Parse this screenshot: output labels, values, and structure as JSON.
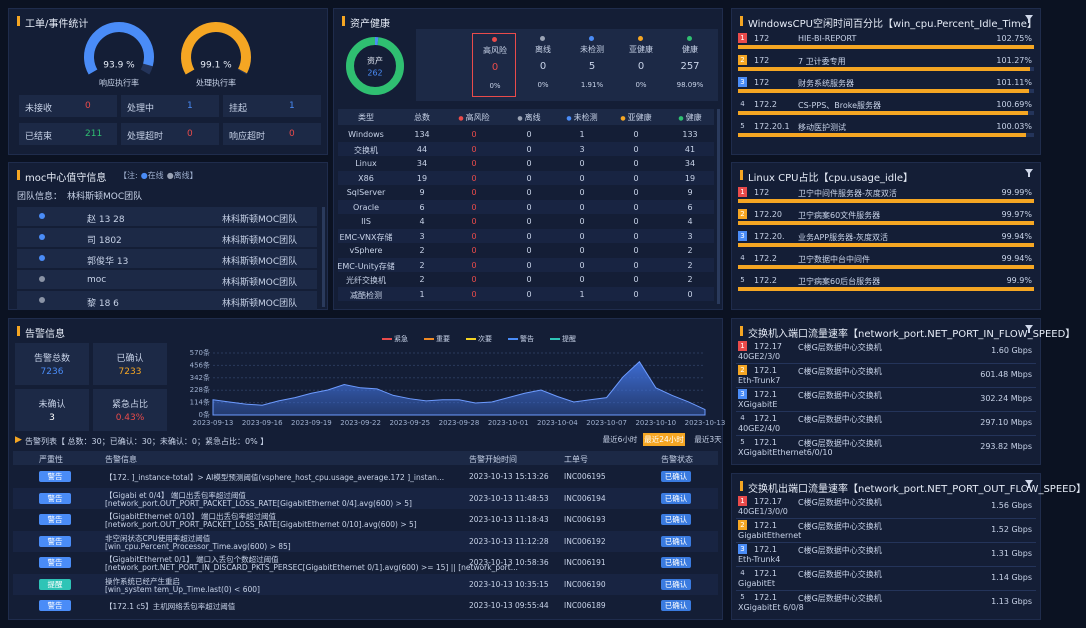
{
  "work_orders": {
    "title": "工单/事件统计",
    "lim": [
      0,
      100
    ],
    "gauges": [
      {
        "value": 93.9,
        "value_label": "93.9 %",
        "label": "响应执行率",
        "color": "#4a8cf7"
      },
      {
        "value": 99.1,
        "value_label": "99.1 %",
        "label": "处理执行率",
        "color": "#f5a623"
      }
    ],
    "stats": [
      {
        "label": "未接收",
        "value": 0,
        "color": "#e94b4b"
      },
      {
        "label": "处理中",
        "value": 1,
        "color": "#4a8cf7"
      },
      {
        "label": "挂起",
        "value": 1,
        "color": "#4a8cf7"
      },
      {
        "label": "已结束",
        "value": 211,
        "color": "#2fbf71"
      },
      {
        "label": "处理超时",
        "value": 0,
        "color": "#e94b4b"
      },
      {
        "label": "响应超时",
        "value": 0,
        "color": "#e94b4b"
      }
    ]
  },
  "moc": {
    "title": "moc中心值守信息",
    "note_prefix": "【注:",
    "online": "在线",
    "offline": "离线",
    "note_suffix": "】",
    "team_label": "团队信息：",
    "team": "林科斯顿MOC团队",
    "rows": [
      {
        "name": "赵 13 28",
        "team": "林科斯顿MOC团队",
        "online": true
      },
      {
        "name": "司 1802",
        "team": "林科斯顿MOC团队",
        "online": true
      },
      {
        "name": "郭俊华 13",
        "team": "林科斯顿MOC团队",
        "online": true
      },
      {
        "name": "moc",
        "team": "林科斯顿MOC团队",
        "online": false
      },
      {
        "name": "黎 18 6",
        "team": "林科斯顿MOC团队",
        "online": false
      }
    ]
  },
  "assets": {
    "title": "资产健康",
    "donut_label": "资产",
    "total_label": "总数",
    "total": 262,
    "cards": [
      {
        "label": "高风险",
        "value": 0,
        "share": 0,
        "share_label": "0%",
        "color": "#e94b4b"
      },
      {
        "label": "离线",
        "value": 0,
        "share": 0,
        "share_label": "0%",
        "color": "#9aa3b5"
      },
      {
        "label": "未检测",
        "value": 5,
        "share": 1.91,
        "share_label": "1.91%",
        "color": "#4a8cf7"
      },
      {
        "label": "亚健康",
        "value": 0,
        "share": 0,
        "share_label": "0%",
        "color": "#f5a623"
      },
      {
        "label": "健康",
        "value": 257,
        "share": 98.09,
        "share_label": "98.09%",
        "color": "#2fbf71"
      }
    ],
    "table": {
      "columns": [
        "类型",
        "总数",
        "高风险",
        "离线",
        "未检测",
        "亚健康",
        "健康"
      ],
      "rows": [
        [
          "Windows",
          134,
          0,
          0,
          1,
          0,
          133
        ],
        [
          "交换机",
          44,
          0,
          0,
          3,
          0,
          41
        ],
        [
          "Linux",
          34,
          0,
          0,
          0,
          0,
          34
        ],
        [
          "X86",
          19,
          0,
          0,
          0,
          0,
          19
        ],
        [
          "SqlServer",
          9,
          0,
          0,
          0,
          0,
          9
        ],
        [
          "Oracle",
          6,
          0,
          0,
          0,
          0,
          6
        ],
        [
          "IIS",
          4,
          0,
          0,
          0,
          0,
          4
        ],
        [
          "EMC-VNX存储",
          3,
          0,
          0,
          0,
          0,
          3
        ],
        [
          "vSphere",
          2,
          0,
          0,
          0,
          0,
          2
        ],
        [
          "EMC-Unity存储",
          2,
          0,
          0,
          0,
          0,
          2
        ],
        [
          "光纤交换机",
          2,
          0,
          0,
          0,
          0,
          2
        ],
        [
          "减酷检测",
          1,
          0,
          0,
          1,
          0,
          0
        ]
      ]
    }
  },
  "cpu_panels": [
    {
      "title": "WindowsCPU空闲时间百分比【win_cpu.Percent_Idle_Time】",
      "rows": [
        {
          "rank": 1,
          "ip": "172",
          "name": "HIE-BI-REPORT",
          "value": 102.75,
          "value_label": "102.75%"
        },
        {
          "rank": 2,
          "ip": "172",
          "name": "7 卫计委专用",
          "value": 101.27,
          "value_label": "101.27%"
        },
        {
          "rank": 3,
          "ip": "172",
          "name": "财务系统服务器",
          "value": 101.11,
          "value_label": "101.11%"
        },
        {
          "rank": 4,
          "ip": "172.2",
          "name": "CS-PPS、Broke服务器",
          "value": 100.69,
          "value_label": "100.69%"
        },
        {
          "rank": 5,
          "ip": "172.20.1",
          "name": "移动医护测试",
          "value": 100.03,
          "value_label": "100.03%"
        }
      ]
    },
    {
      "title": "Linux  CPU占比【cpu.usage_idle】",
      "rows": [
        {
          "rank": 1,
          "ip": "172",
          "name": "卫宁中间件服务器-灰度双活",
          "value": 99.99,
          "value_label": "99.99%"
        },
        {
          "rank": 2,
          "ip": "172.20",
          "name": "卫宁病案60文件服务器",
          "value": 99.97,
          "value_label": "99.97%"
        },
        {
          "rank": 3,
          "ip": "172.20.",
          "name": "业务APP服务器-灰度双活",
          "value": 99.94,
          "value_label": "99.94%"
        },
        {
          "rank": 4,
          "ip": "172.2",
          "name": "卫宁数据中台中间件",
          "value": 99.94,
          "value_label": "99.94%"
        },
        {
          "rank": 5,
          "ip": "172.2",
          "name": "卫宁病案60后台服务器",
          "value": 99.9,
          "value_label": "99.9%"
        }
      ]
    }
  ],
  "flow_panels": [
    {
      "title": "交换机入端口流量速率【network_port.NET_PORT_IN_FLOW_SPEED】",
      "rows": [
        {
          "rank": 1,
          "ip": "172.17",
          "name": "C楼G层数据中心交换机",
          "port": "40GE2/3/0",
          "rate": "1.60 Gbps"
        },
        {
          "rank": 2,
          "ip": "172.1",
          "name": "C楼G层数据中心交换机",
          "port": "Eth-Trunk7",
          "rate": "601.48 Mbps"
        },
        {
          "rank": 3,
          "ip": "172.1",
          "name": "C楼G层数据中心交换机",
          "port": "XGigabitE",
          "rate": "302.24 Mbps"
        },
        {
          "rank": 4,
          "ip": "172.1",
          "name": "C楼G层数据中心交换机",
          "port": "40GE2/4/0",
          "rate": "297.10 Mbps"
        },
        {
          "rank": 5,
          "ip": "172.1",
          "name": "C楼G层数据中心交换机",
          "port": "XGigabitEthernet6/0/10",
          "rate": "293.82 Mbps"
        }
      ]
    },
    {
      "title": "交换机出端口流量速率【network_port.NET_PORT_OUT_FLOW_SPEED】",
      "rows": [
        {
          "rank": 1,
          "ip": "172.17",
          "name": "C楼G层数据中心交换机",
          "port": "40GE1/3/0/0",
          "rate": "1.56 Gbps"
        },
        {
          "rank": 2,
          "ip": "172.1",
          "name": "C楼G层数据中心交换机",
          "port": "GigabitEthernet",
          "rate": "1.52 Gbps"
        },
        {
          "rank": 3,
          "ip": "172.1",
          "name": "C楼G层数据中心交换机",
          "port": "Eth-Trunk4",
          "rate": "1.31 Gbps"
        },
        {
          "rank": 4,
          "ip": "172.1",
          "name": "C楼G层数据中心交换机",
          "port": "GigabitEt",
          "rate": "1.14 Gbps"
        },
        {
          "rank": 5,
          "ip": "172.1",
          "name": "C楼G层数据中心交换机",
          "port": "XGigabitEt 6/0/8",
          "rate": "1.13 Gbps"
        }
      ]
    }
  ],
  "alarms": {
    "title": "告警信息",
    "summary": [
      {
        "label": "告警总数",
        "value": 7236,
        "color": "#4a8cf7"
      },
      {
        "label": "已确认",
        "value": 7233,
        "color": "#f5a623"
      },
      {
        "label": "未确认",
        "value": 3,
        "color": "#ffffff"
      },
      {
        "label": "紧急占比",
        "value": 0.43,
        "value_label": "0.43%",
        "color": "#e94b4b"
      }
    ],
    "list_summary": "告警列表【 总数：30；已确认：30；未确认：0；紧急占比：0% 】",
    "ranges": [
      "最近6小时",
      "最近24小时",
      "最近3天"
    ],
    "active_range": 1,
    "columns": [
      "严重性",
      "告警信息",
      "告警开始时间",
      "工单号",
      "告警状态"
    ],
    "rows": [
      {
        "severity": "警告",
        "line1": "【172.   ]_instance-total】> AI模型预测阈值(vsphere_host_cpu.usage_average.172   ]_instan...",
        "time": "2023-10-13 15:13:26",
        "ticket": "INC006195",
        "status": "已确认"
      },
      {
        "severity": "警告",
        "line1": "【Gigabi   et 0/4】 端口出丢包率超过阈值",
        "line2": "[network_port.OUT_PORT_PACKET_LOSS_RATE[GigabitEthernet 0/4].avg(600) > 5]",
        "time": "2023-10-13 11:48:53",
        "ticket": "INC006194",
        "status": "已确认"
      },
      {
        "severity": "警告",
        "line1": "【GigabitEthernet 0/10】 端口出丢包率超过阈值",
        "line2": "[network_port.OUT_PORT_PACKET_LOSS_RATE[GigabitEthernet 0/10].avg(600) > 5]",
        "time": "2023-10-13 11:18:43",
        "ticket": "INC006193",
        "status": "已确认"
      },
      {
        "severity": "警告",
        "line1": "非空闲状态CPU使用率超过阈值",
        "line2": "[win_cpu.Percent_Processor_Time.avg(600) > 85]",
        "time": "2023-10-13 11:12:28",
        "ticket": "INC006192",
        "status": "已确认"
      },
      {
        "severity": "警告",
        "line1": "【GigabitEthernet 0/1】 端口入丢包个数超过阈值",
        "line2": "[network_port.NET_PORT_IN_DISCARD_PKTS_PERSEC[GigabitEthernet 0/1].avg(600) >= 15] || [network_port...",
        "time": "2023-10-13 10:58:36",
        "ticket": "INC006191",
        "status": "已确认"
      },
      {
        "severity": "提醒",
        "line1": "操作系统已经产生重启",
        "line2": "[win_system   tem_Up_Time.last(0) < 600]",
        "time": "2023-10-13 10:35:15",
        "ticket": "INC006190",
        "status": "已确认"
      },
      {
        "severity": "警告",
        "line1": "【172.1    c5】主机网络丢包率超过阈值",
        "time": "2023-10-13 09:55:44",
        "ticket": "INC006189",
        "status": "已确认"
      }
    ]
  },
  "chart_data": {
    "type": "area",
    "color": "#3f6fd8",
    "legend": [
      {
        "name": "紧急",
        "color": "#e94b4b"
      },
      {
        "name": "重要",
        "color": "#f08a24"
      },
      {
        "name": "次要",
        "color": "#f5d423"
      },
      {
        "name": "警告",
        "color": "#4a8cf7"
      },
      {
        "name": "提醒",
        "color": "#2ec4b6"
      }
    ],
    "categories": [
      "2023-09-13",
      null,
      null,
      "2023-09-16",
      null,
      null,
      "2023-09-19",
      null,
      null,
      "2023-09-22",
      null,
      null,
      "2023-09-25",
      null,
      null,
      "2023-09-28",
      null,
      null,
      "2023-10-01",
      null,
      null,
      "2023-10-04",
      null,
      null,
      "2023-10-07",
      null,
      null,
      "2023-10-10",
      null,
      null,
      "2023-10-13"
    ],
    "values": [
      140,
      120,
      100,
      90,
      130,
      160,
      200,
      230,
      280,
      250,
      240,
      180,
      150,
      130,
      140,
      140,
      110,
      120,
      160,
      200,
      230,
      170,
      120,
      140,
      160,
      350,
      490,
      250,
      180,
      120,
      50
    ],
    "ylim": [
      0,
      570
    ],
    "yticks": [
      {
        "value": 0,
        "label": "0条"
      },
      {
        "value": 114,
        "label": "114条"
      },
      {
        "value": 228,
        "label": "228条"
      },
      {
        "value": 342,
        "label": "342条"
      },
      {
        "value": 456,
        "label": "456条"
      },
      {
        "value": 570,
        "label": "570条"
      }
    ],
    "grid": true
  }
}
